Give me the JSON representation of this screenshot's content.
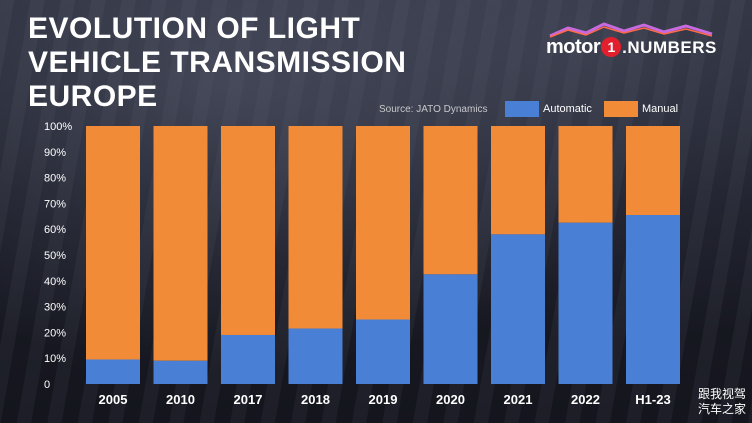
{
  "header": {
    "title_lines": [
      "EVOLUTION OF LIGHT",
      "VEHICLE TRANSMISSION",
      "EUROPE"
    ],
    "logo": {
      "brand": "motor",
      "number_glyph": "1",
      "suffix": "NUMBERS"
    },
    "source": "Source: JATO Dynamics"
  },
  "legend": {
    "automatic": {
      "label": "Automatic",
      "color": "#4a7fd6"
    },
    "manual": {
      "label": "Manual",
      "color": "#f28b37"
    }
  },
  "watermark": {
    "line1": "跟我视驾",
    "line2": "汽车之家"
  },
  "chart_data": {
    "type": "bar",
    "stacked": true,
    "categories": [
      "2005",
      "2010",
      "2017",
      "2018",
      "2019",
      "2020",
      "2021",
      "2022",
      "H1-23"
    ],
    "series": [
      {
        "name": "Automatic",
        "values": [
          9.5,
          9,
          19,
          21.5,
          25,
          42.5,
          58,
          62.5,
          65.5
        ],
        "color": "#4a7fd6"
      },
      {
        "name": "Manual",
        "values": [
          90.5,
          91,
          81,
          78.5,
          75,
          57.5,
          42,
          37.5,
          34.5
        ],
        "color": "#f28b37"
      }
    ],
    "ylim": [
      0,
      100
    ],
    "yticks": [
      "0",
      "10%",
      "20%",
      "30%",
      "40%",
      "50%",
      "60%",
      "70%",
      "80%",
      "90%",
      "100%"
    ],
    "title": "EVOLUTION OF LIGHT VEHICLE TRANSMISSION EUROPE",
    "xlabel": "",
    "ylabel": "",
    "grid": false,
    "legend_position": "top-right"
  }
}
